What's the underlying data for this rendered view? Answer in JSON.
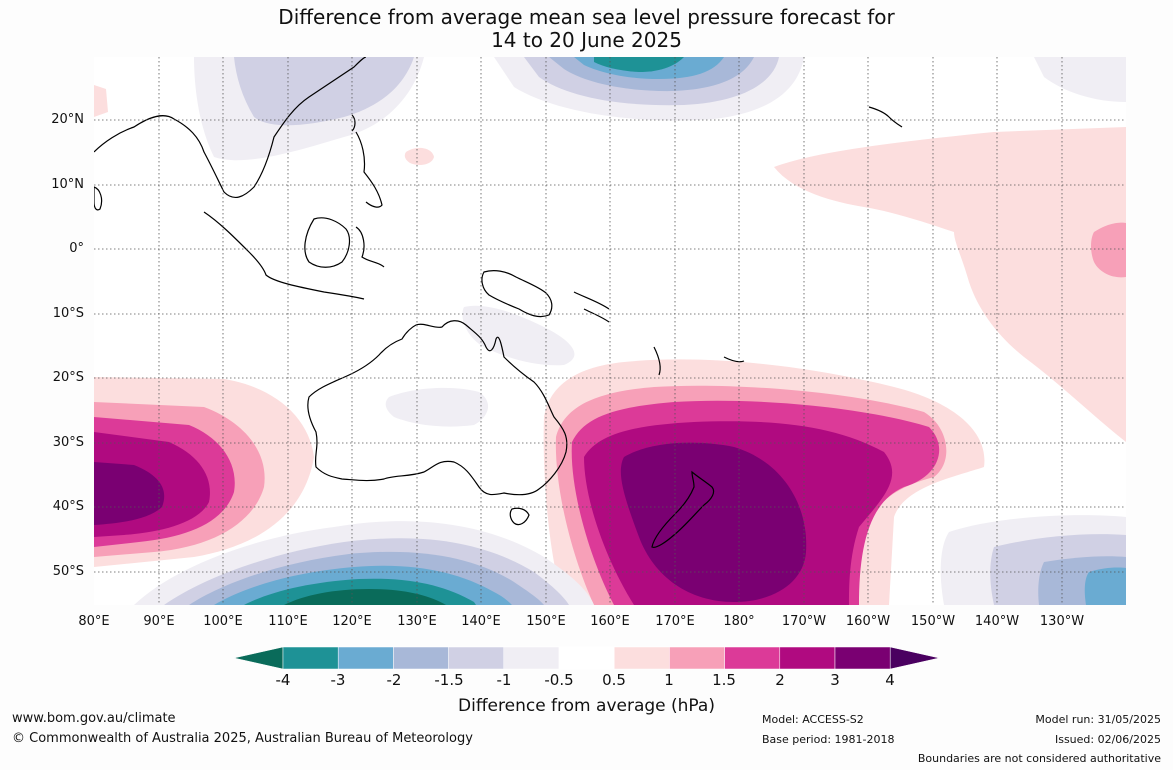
{
  "header": {
    "title_line1": "Difference from average mean sea level pressure forecast for",
    "title_line2": "14 to 20 June 2025"
  },
  "map": {
    "lat_labels": [
      "20°N",
      "10°N",
      "0°",
      "10°S",
      "20°S",
      "30°S",
      "40°S",
      "50°S"
    ],
    "lon_labels": [
      "80°E",
      "90°E",
      "100°E",
      "110°E",
      "120°E",
      "130°E",
      "140°E",
      "150°E",
      "160°E",
      "170°E",
      "180°",
      "170°W",
      "160°W",
      "150°W",
      "140°W",
      "130°W"
    ],
    "extent": {
      "lon": [
        80,
        240
      ],
      "lat": [
        -55,
        30
      ]
    }
  },
  "colorbar": {
    "title": "Difference from average (hPa)",
    "tick_labels": [
      "-4",
      "-3",
      "-2",
      "-1.5",
      "-1",
      "-0.5",
      "0.5",
      "1",
      "1.5",
      "2",
      "3",
      "4"
    ],
    "colors": [
      "#0a6b5a",
      "#1e9296",
      "#6aabd2",
      "#a8b8d8",
      "#d0d0e4",
      "#f0eef4",
      "#ffffff",
      "#fcdede",
      "#f7a0b8",
      "#dc3a98",
      "#b00a80",
      "#7a0072",
      "#4a0060"
    ]
  },
  "footer": {
    "url": "www.bom.gov.au/climate",
    "copyright": "© Commonwealth of Australia 2025, Australian Bureau of Meteorology",
    "model": "Model: ACCESS-S2",
    "base_period": "Base period: 1981-2018",
    "model_run": "Model run: 31/05/2025",
    "issued": "Issued: 02/06/2025",
    "disclaimer": "Boundaries are not considered authoritative"
  }
}
